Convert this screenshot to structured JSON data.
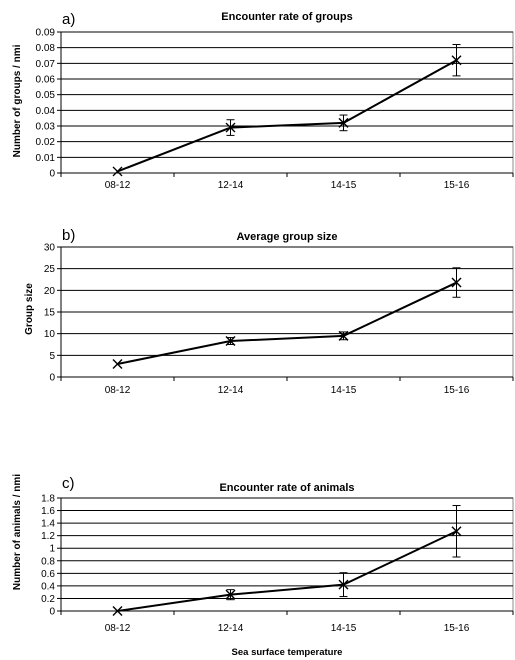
{
  "chart_data": [
    {
      "panel": "a)",
      "type": "line",
      "title": "Encounter rate of groups",
      "ylabel": "Number of groups / nmi",
      "xlabel": "",
      "categories": [
        "08-12",
        "12-14",
        "14-15",
        "15-16"
      ],
      "values": [
        0.001,
        0.029,
        0.032,
        0.072
      ],
      "error": [
        0.0,
        0.005,
        0.005,
        0.01
      ],
      "ylim": [
        0,
        0.09
      ],
      "yticks": [
        "0",
        "0.01",
        "0.02",
        "0.03",
        "0.04",
        "0.05",
        "0.06",
        "0.07",
        "0.08",
        "0.09"
      ],
      "grid": true,
      "legend": "none"
    },
    {
      "panel": "b)",
      "type": "line",
      "title": "Average group size",
      "ylabel": "Group size",
      "xlabel": "",
      "categories": [
        "08-12",
        "12-14",
        "14-15",
        "15-16"
      ],
      "values": [
        3,
        8.3,
        9.5,
        21.8
      ],
      "error": [
        0.0,
        0.8,
        0.9,
        3.4
      ],
      "ylim": [
        0,
        30
      ],
      "yticks": [
        "0",
        "5",
        "10",
        "15",
        "20",
        "25",
        "30"
      ],
      "grid": true,
      "legend": "none"
    },
    {
      "panel": "c)",
      "type": "line",
      "title": "Encounter rate of animals",
      "ylabel": "Number of animals / nmi",
      "xlabel": "Sea surface temperature",
      "categories": [
        "08-12",
        "12-14",
        "14-15",
        "15-16"
      ],
      "values": [
        0.0,
        0.26,
        0.42,
        1.27
      ],
      "error": [
        0.0,
        0.08,
        0.19,
        0.41
      ],
      "ylim": [
        0,
        1.8
      ],
      "yticks": [
        "0",
        "0.2",
        "0.4",
        "0.6",
        "0.8",
        "1",
        "1.2",
        "1.4",
        "1.6",
        "1.8"
      ],
      "grid": true,
      "legend": "none"
    }
  ]
}
